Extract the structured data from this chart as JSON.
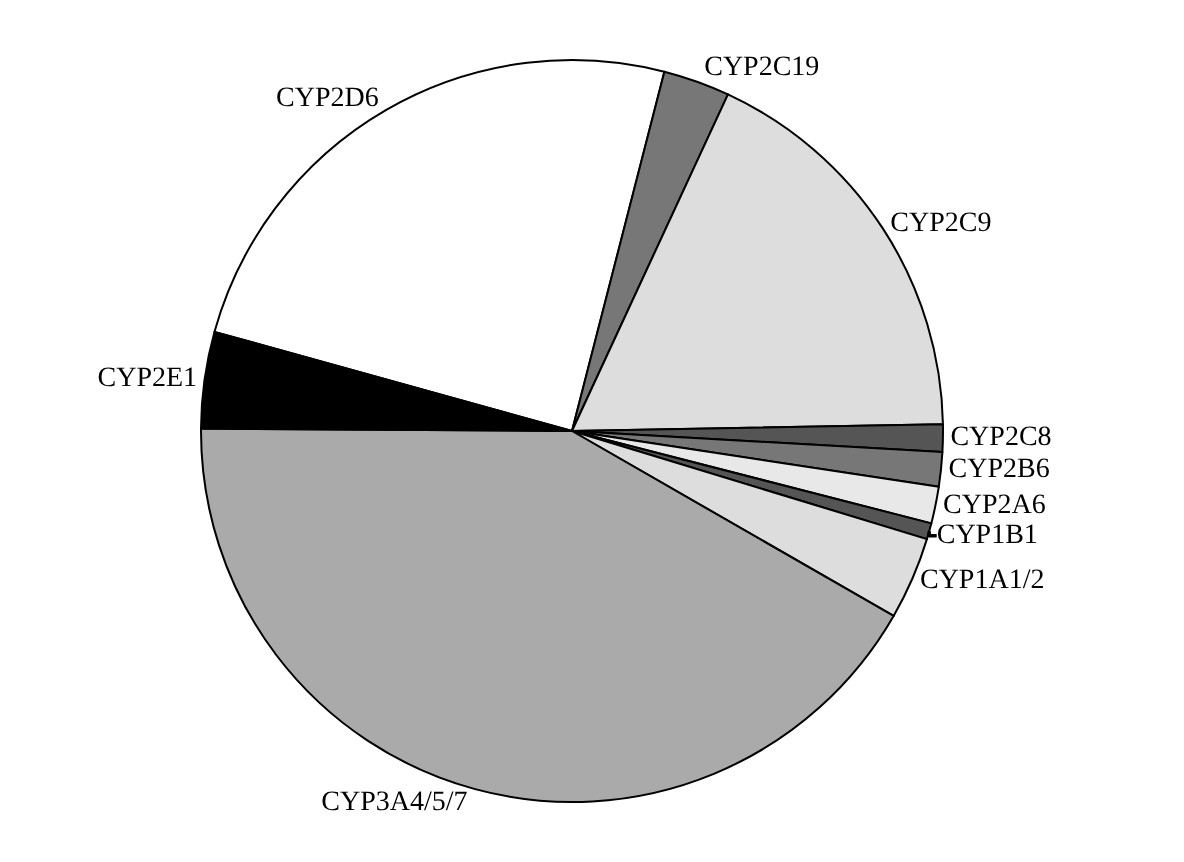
{
  "chart_data": {
    "type": "pie",
    "categories": [
      "CYP2D6",
      "CYP2C19",
      "CYP2C9",
      "CYP2C8",
      "CYP2B6",
      "CYP2A6",
      "CYP1B1",
      "CYP1A1/2",
      "CYP3A4/5/7",
      "CYP2E1"
    ],
    "values": [
      24.7,
      2.9,
      17.8,
      1.2,
      1.5,
      1.6,
      0.7,
      3.6,
      41.8,
      4.2
    ],
    "colors": [
      "#ffffff",
      "#777777",
      "#dddddd",
      "#555555",
      "#777777",
      "#e8e8e8",
      "#555555",
      "#dddddd",
      "#aaaaaa",
      "#000000"
    ],
    "legend": false
  }
}
